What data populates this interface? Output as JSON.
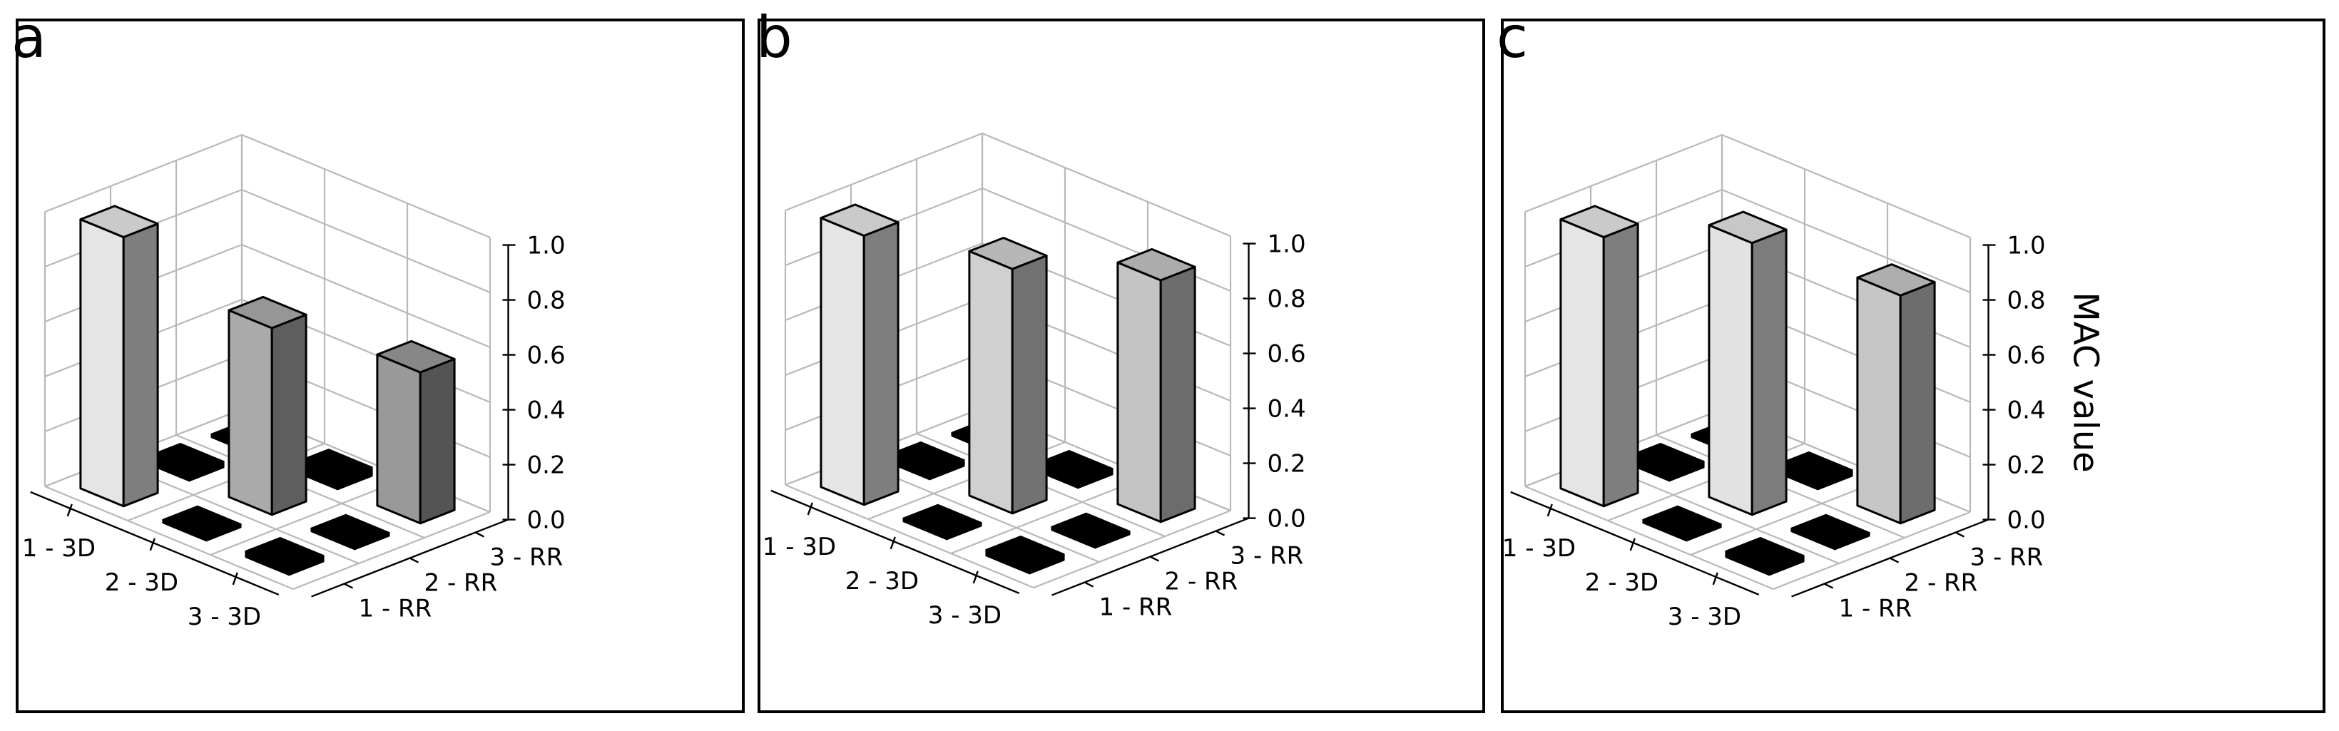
{
  "figure": {
    "panels": [
      {
        "letter": "a"
      },
      {
        "letter": "b"
      },
      {
        "letter": "c"
      }
    ]
  },
  "chart_data": [
    {
      "type": "bar3d",
      "panel": "a",
      "x_ticks": [
        "1 - 3D",
        "2 - 3D",
        "3 - 3D"
      ],
      "y_ticks": [
        "1 - RR",
        "2 - RR",
        "3 - RR"
      ],
      "z_ticks": [
        "0.0",
        "0.2",
        "0.4",
        "0.6",
        "0.8",
        "1.0"
      ],
      "zlim": [
        0,
        1
      ],
      "zlabel": "",
      "grid": true,
      "values": [
        [
          0.98,
          0.02,
          0.01
        ],
        [
          0.01,
          0.68,
          0.03
        ],
        [
          0.02,
          0.01,
          0.55
        ]
      ],
      "colors": [
        [
          "#e5e5e5",
          "#000000",
          "#000000"
        ],
        [
          "#000000",
          "#aaaaaa",
          "#000000"
        ],
        [
          "#000000",
          "#000000",
          "#999999"
        ]
      ]
    },
    {
      "type": "bar3d",
      "panel": "b",
      "x_ticks": [
        "1 - 3D",
        "2 - 3D",
        "3 - 3D"
      ],
      "y_ticks": [
        "1 - RR",
        "2 - RR",
        "3 - RR"
      ],
      "z_ticks": [
        "0.0",
        "0.2",
        "0.4",
        "0.6",
        "0.8",
        "1.0"
      ],
      "zlim": [
        0,
        1
      ],
      "zlabel": "",
      "grid": true,
      "values": [
        [
          0.98,
          0.02,
          0.01
        ],
        [
          0.01,
          0.89,
          0.02
        ],
        [
          0.02,
          0.01,
          0.88
        ]
      ],
      "colors": [
        [
          "#e5e5e5",
          "#000000",
          "#000000"
        ],
        [
          "#000000",
          "#d0d0d0",
          "#000000"
        ],
        [
          "#000000",
          "#000000",
          "#c4c4c4"
        ]
      ]
    },
    {
      "type": "bar3d",
      "panel": "c",
      "x_ticks": [
        "1 - 3D",
        "2 - 3D",
        "3 - 3D"
      ],
      "y_ticks": [
        "1 - RR",
        "2 - RR",
        "3 - RR"
      ],
      "z_ticks": [
        "0.0",
        "0.2",
        "0.4",
        "0.6",
        "0.8",
        "1.0"
      ],
      "zlim": [
        0,
        1
      ],
      "zlabel": "MAC value",
      "grid": true,
      "values": [
        [
          0.98,
          0.02,
          0.01
        ],
        [
          0.01,
          0.99,
          0.02
        ],
        [
          0.02,
          0.01,
          0.83
        ]
      ],
      "colors": [
        [
          "#e5e5e5",
          "#000000",
          "#000000"
        ],
        [
          "#000000",
          "#e2e2e2",
          "#000000"
        ],
        [
          "#000000",
          "#000000",
          "#c6c6c6"
        ]
      ]
    }
  ]
}
